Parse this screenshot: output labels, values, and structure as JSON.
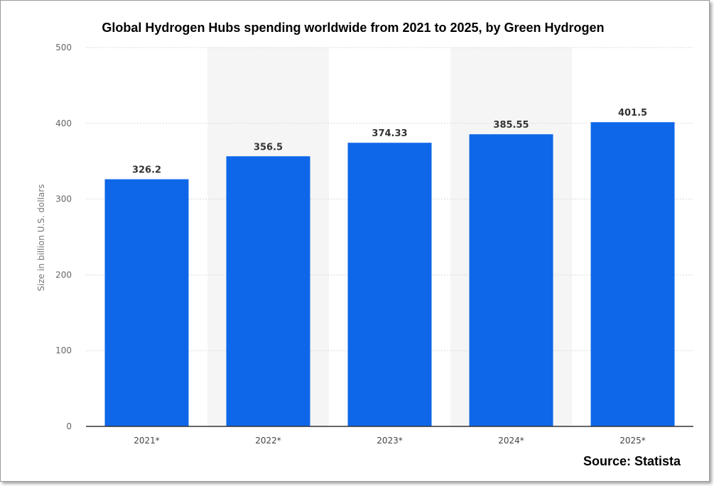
{
  "chart_data": {
    "type": "bar",
    "title": "Global Hydrogen Hubs spending worldwide from 2021 to 2025, by Green Hydrogen",
    "categories": [
      "2021*",
      "2022*",
      "2023*",
      "2024*",
      "2025*"
    ],
    "values": [
      326.2,
      356.5,
      374.33,
      385.55,
      401.5
    ],
    "data_labels": [
      "326.2",
      "356.5",
      "374.33",
      "385.55",
      "401.5"
    ],
    "xlabel": "",
    "ylabel": "Size in billion U.S. dollars",
    "ylim": [
      0,
      500
    ],
    "yticks": [
      0,
      100,
      200,
      300,
      400,
      500
    ],
    "grid": true,
    "legend": "none",
    "source": "Source: Statista",
    "colors": {
      "bar": "#0e67e8",
      "alternate_band": "#f5f5f5",
      "gridline": "#d9d9d9",
      "baseline": "#333333"
    }
  }
}
